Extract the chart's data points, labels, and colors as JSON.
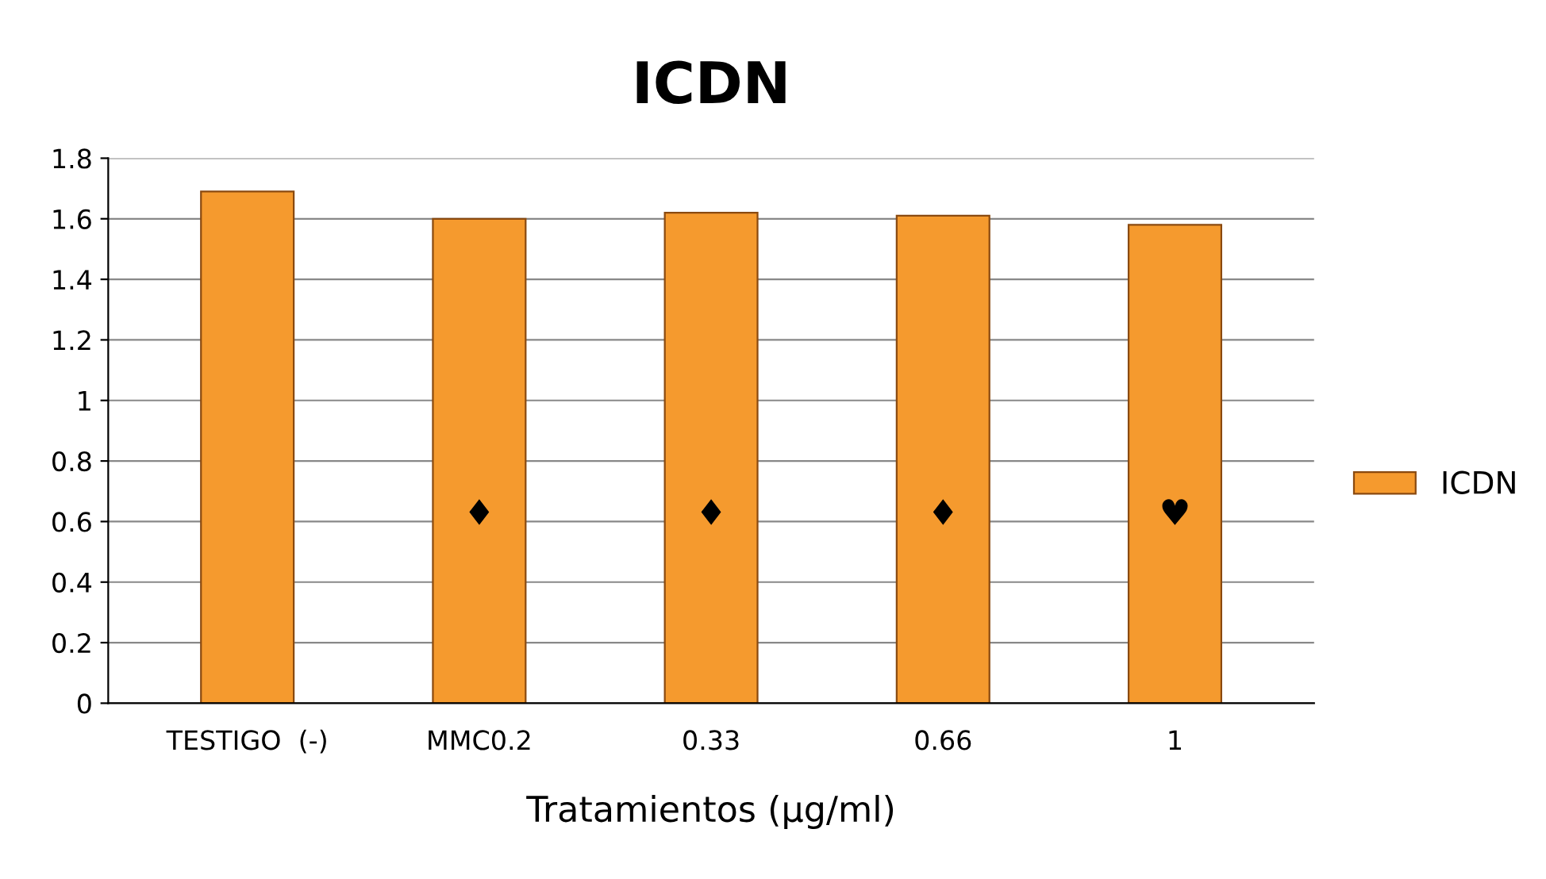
{
  "chart_data": {
    "type": "bar",
    "title": "ICDN",
    "xlabel": "Tratamientos (µg/ml)",
    "categories": [
      "TESTIGO  (-)",
      "MMC0.2",
      "0.33",
      "0.66",
      "1"
    ],
    "series": [
      {
        "name": "ICDN",
        "color": "#f59a2e",
        "values": [
          1.69,
          1.6,
          1.62,
          1.61,
          1.58
        ],
        "value_labels": [
          null,
          "♦",
          "♦",
          "♦",
          "♥"
        ]
      }
    ],
    "ylim": [
      0,
      1.8
    ],
    "yticks": [
      0,
      0.2,
      0.4,
      0.6,
      0.8,
      1,
      1.2,
      1.4,
      1.6,
      1.8
    ],
    "grid": "y",
    "legend": "right"
  }
}
